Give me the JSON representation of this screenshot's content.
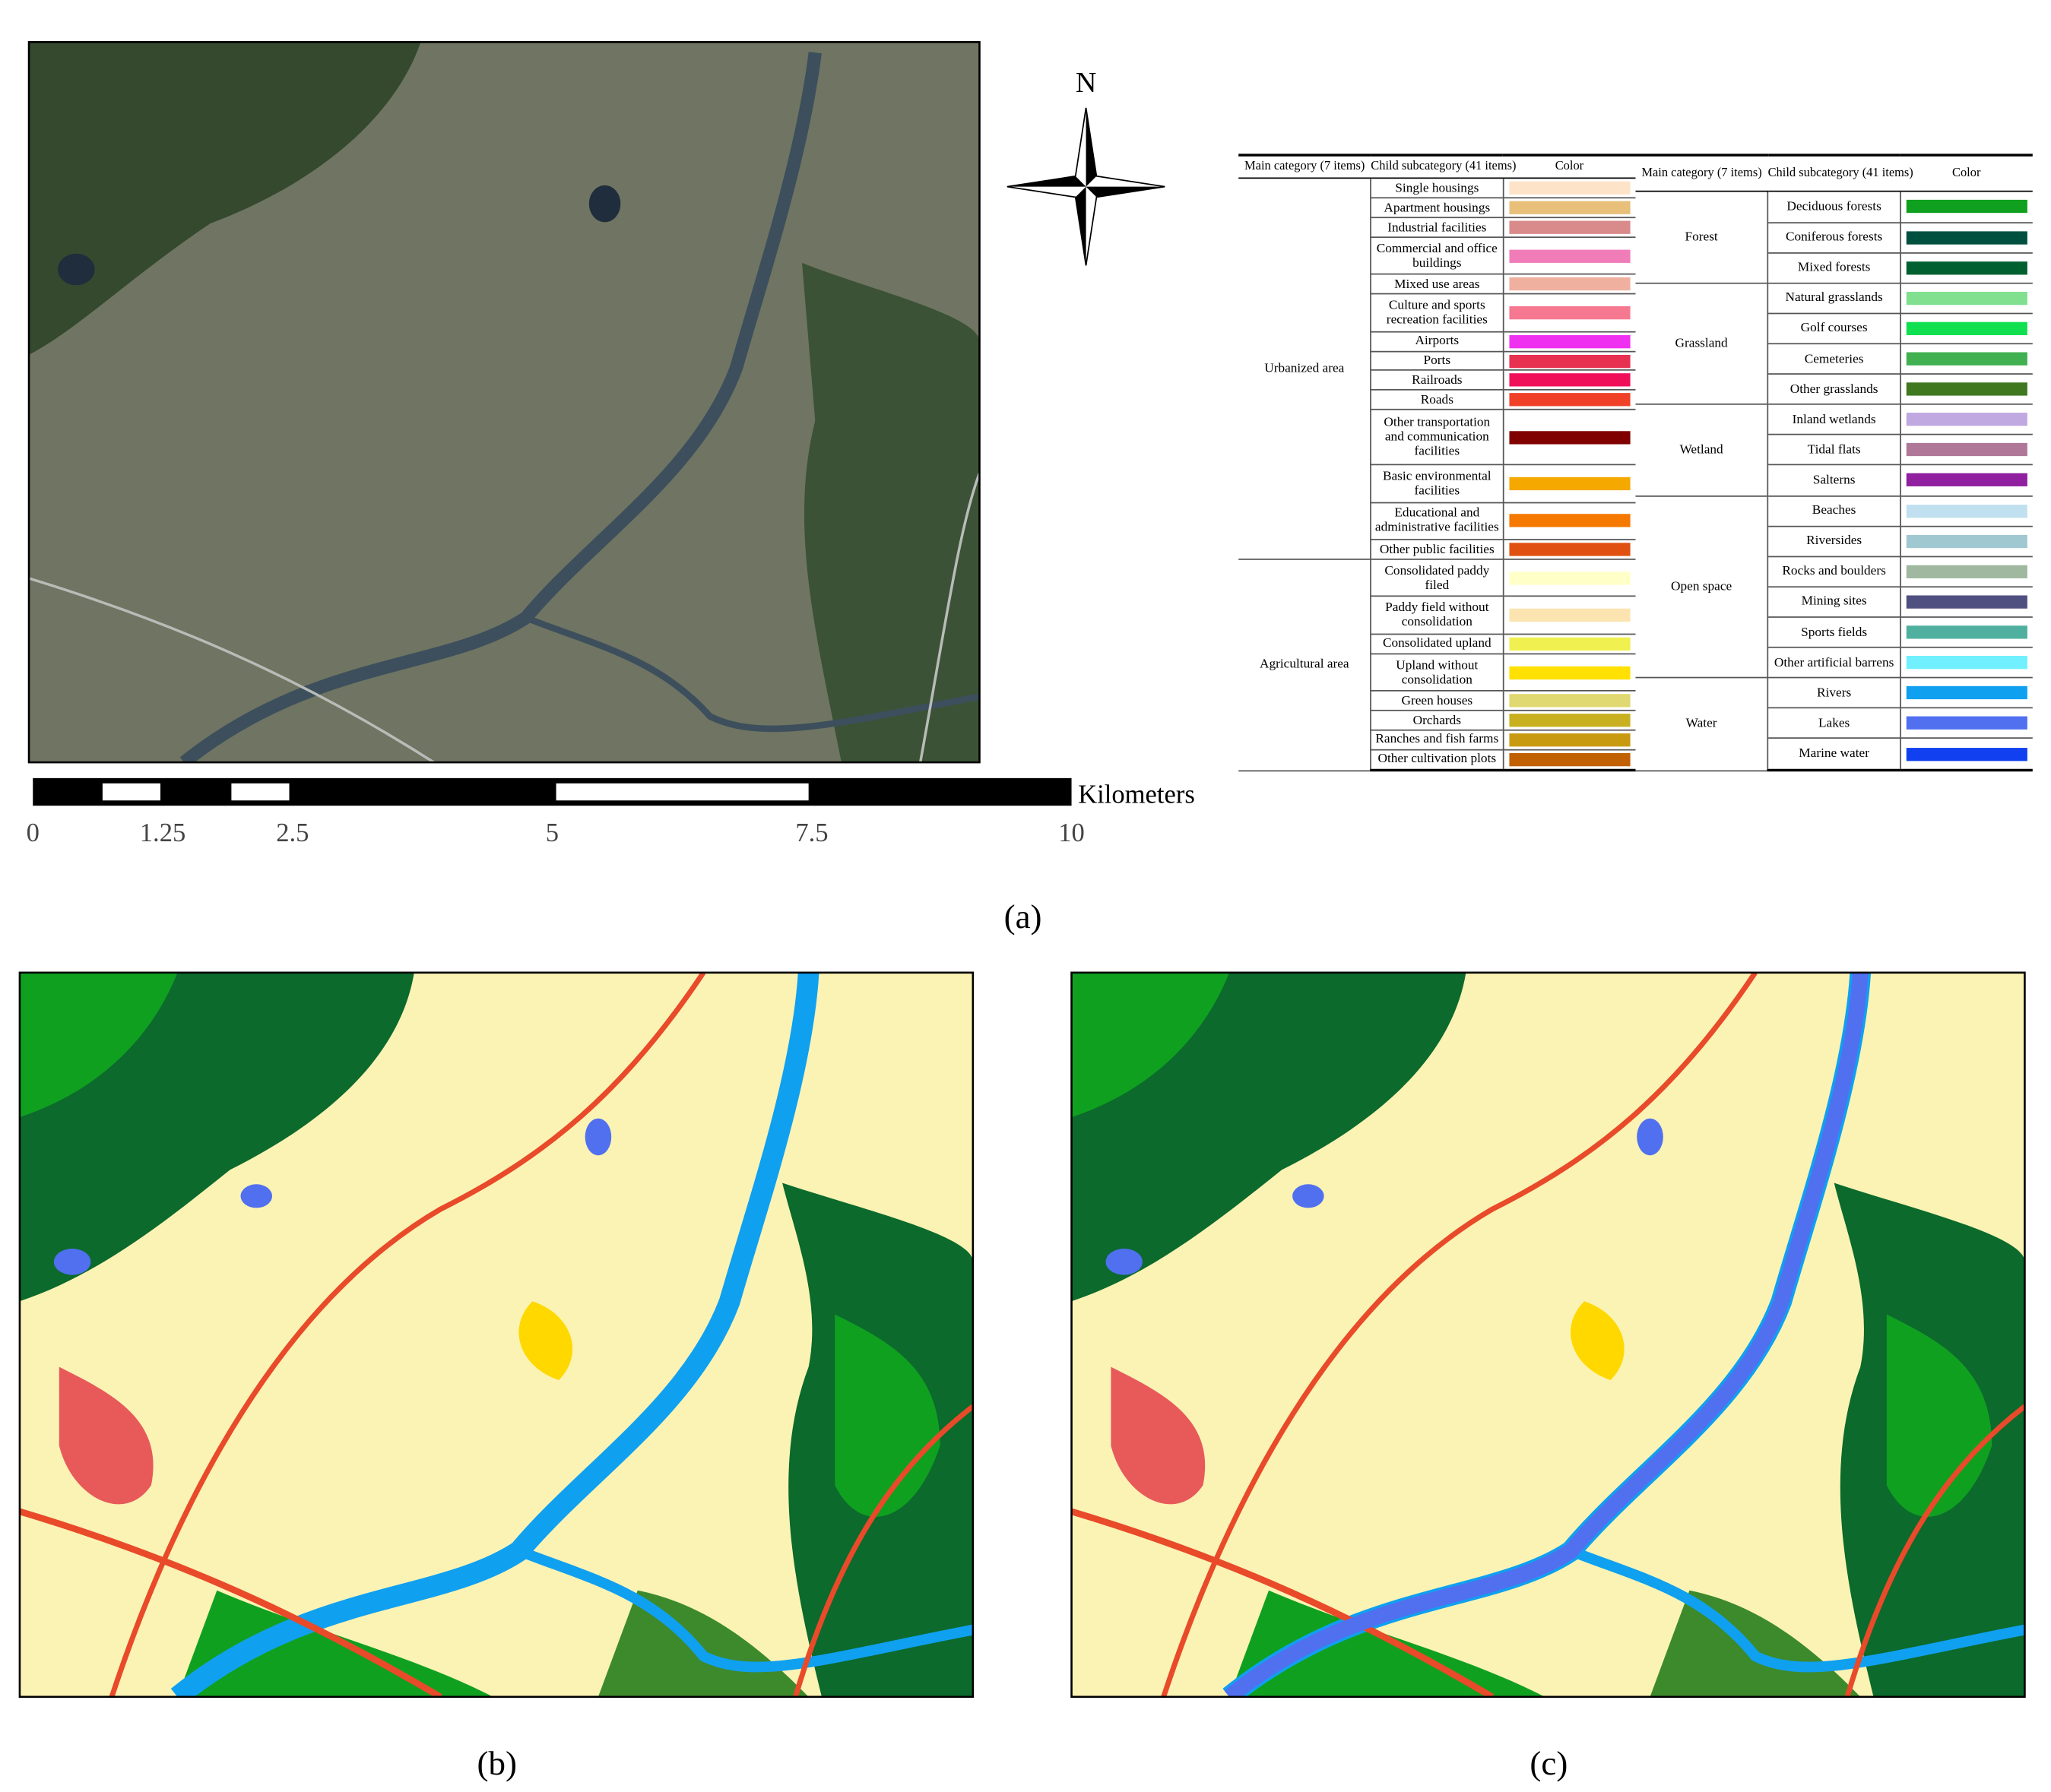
{
  "north_label": "N",
  "scale_bar": {
    "unit": "Kilometers",
    "ticks": [
      0,
      1.25,
      2.5,
      5,
      7.5,
      10
    ]
  },
  "panels": [
    "(a)",
    "(b)",
    "(c)"
  ],
  "legend": {
    "headers": [
      "Main category (7 items)",
      "Child subcategory (41 items)",
      "Color"
    ],
    "groups": [
      {
        "name": "Urbanized area",
        "items": [
          {
            "name": "Single housings",
            "color": "#fde3c8"
          },
          {
            "name": "Apartment housings",
            "color": "#e8c07a"
          },
          {
            "name": "Industrial facilities",
            "color": "#d98a8a"
          },
          {
            "name": "Commercial and office buildings",
            "color": "#f07cb8"
          },
          {
            "name": "Mixed use areas",
            "color": "#f0b0a0"
          },
          {
            "name": "Culture and sports recreation facilities",
            "color": "#f57890"
          },
          {
            "name": "Airports",
            "color": "#f030f0"
          },
          {
            "name": "Ports",
            "color": "#e83050"
          },
          {
            "name": "Railroads",
            "color": "#f0105a"
          },
          {
            "name": "Roads",
            "color": "#f04028"
          },
          {
            "name": "Other transportation and communication facilities",
            "color": "#800000"
          },
          {
            "name": "Basic environmental facilities",
            "color": "#f5a800"
          },
          {
            "name": "Educational and administrative facilities",
            "color": "#f57800"
          },
          {
            "name": "Other public facilities",
            "color": "#e05010"
          }
        ]
      },
      {
        "name": "Agricultural area",
        "items": [
          {
            "name": "Consolidated paddy filed",
            "color": "#ffffc8"
          },
          {
            "name": "Paddy field without consolidation",
            "color": "#fbe4b0"
          },
          {
            "name": "Consolidated upland",
            "color": "#f0f050"
          },
          {
            "name": "Upland without consolidation",
            "color": "#ffe000"
          },
          {
            "name": "Green houses",
            "color": "#e0d870"
          },
          {
            "name": "Orchards",
            "color": "#c8b020"
          },
          {
            "name": "Ranches and fish farms",
            "color": "#c89a10"
          },
          {
            "name": "Other cultivation plots",
            "color": "#c06000"
          }
        ]
      },
      {
        "name": "Forest",
        "items": [
          {
            "name": "Deciduous forests",
            "color": "#10a020"
          },
          {
            "name": "Coniferous forests",
            "color": "#005040"
          },
          {
            "name": "Mixed forests",
            "color": "#006030"
          }
        ]
      },
      {
        "name": "Grassland",
        "items": [
          {
            "name": "Natural grasslands",
            "color": "#80e090"
          },
          {
            "name": "Golf courses",
            "color": "#10e050"
          },
          {
            "name": "Cemeteries",
            "color": "#40b050"
          },
          {
            "name": "Other grasslands",
            "color": "#407820"
          }
        ]
      },
      {
        "name": "Wetland",
        "items": [
          {
            "name": "Inland wetlands",
            "color": "#c0a8e0"
          },
          {
            "name": "Tidal flats",
            "color": "#b07898"
          },
          {
            "name": "Salterns",
            "color": "#9020a0"
          }
        ]
      },
      {
        "name": "Open space",
        "items": [
          {
            "name": "Beaches",
            "color": "#c0e0f0"
          },
          {
            "name": "Riversides",
            "color": "#a0c8d0"
          },
          {
            "name": "Rocks and boulders",
            "color": "#a0b8a0"
          },
          {
            "name": "Mining sites",
            "color": "#505080"
          },
          {
            "name": "Sports fields",
            "color": "#50b0a0"
          },
          {
            "name": "Other artificial barrens",
            "color": "#70f0ff"
          }
        ]
      },
      {
        "name": "Water",
        "items": [
          {
            "name": "Rivers",
            "color": "#10a0f0"
          },
          {
            "name": "Lakes",
            "color": "#5070f0"
          },
          {
            "name": "Marine water",
            "color": "#1040f0"
          }
        ]
      }
    ]
  }
}
